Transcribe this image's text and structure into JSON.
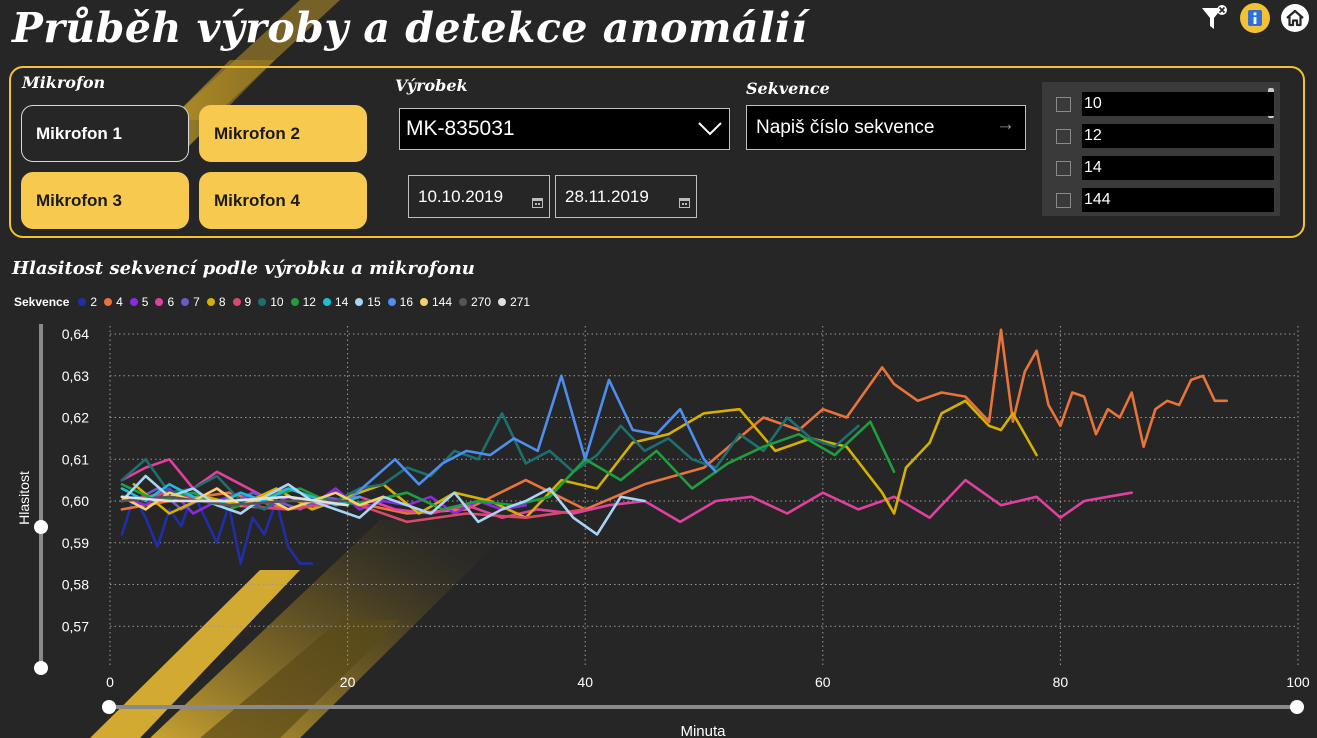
{
  "header": {
    "title": "Průběh výroby a detekce anomálií"
  },
  "top_icons": [
    "clear-filter-icon",
    "info-icon",
    "home-icon"
  ],
  "colors": {
    "accent": "#f2c234",
    "button_yellow": "#f7c94f",
    "background": "#262626"
  },
  "filters": {
    "microphone": {
      "label": "Mikrofon",
      "buttons": [
        {
          "label": "Mikrofon 1",
          "selected": true
        },
        {
          "label": "Mikrofon 2",
          "selected": false
        },
        {
          "label": "Mikrofon 3",
          "selected": false
        },
        {
          "label": "Mikrofon 4",
          "selected": false
        }
      ]
    },
    "product": {
      "label": "Výrobek",
      "value": "MK-835031"
    },
    "date_from": "10.10.2019",
    "date_to": "28.11.2019",
    "sequence": {
      "label": "Sekvence",
      "placeholder": "Napiš číslo sekvence"
    },
    "sequence_list": [
      "10",
      "12",
      "14",
      "144"
    ]
  },
  "chart": {
    "title": "Hlasitost sekvencí podle výrobku a mikrofonu"
  },
  "chart_data": {
    "type": "line",
    "legend_title": "Sekvence",
    "xlabel": "Minuta",
    "ylabel": "Hlasitost",
    "xlim": [
      0,
      100
    ],
    "ylim": [
      0.56,
      0.64
    ],
    "x_ticks": [
      "0",
      "20",
      "40",
      "60",
      "80",
      "100"
    ],
    "y_ticks": [
      "0,64",
      "0,63",
      "0,62",
      "0,61",
      "0,60",
      "0,59",
      "0,58",
      "0,57"
    ],
    "grid": true,
    "legend_position": "top-left",
    "series": [
      {
        "name": "2",
        "color": "#1f2fa8",
        "x": [
          1,
          2,
          3,
          4,
          5,
          6,
          7,
          8,
          9,
          10,
          11,
          12,
          13,
          14,
          15,
          16,
          17
        ],
        "y": [
          0.592,
          0.601,
          0.596,
          0.589,
          0.598,
          0.594,
          0.602,
          0.596,
          0.59,
          0.599,
          0.585,
          0.596,
          0.592,
          0.6,
          0.589,
          0.585,
          0.585
        ]
      },
      {
        "name": "4",
        "color": "#e8743b",
        "x": [
          1,
          5,
          10,
          15,
          20,
          25,
          30,
          35,
          40,
          45,
          50,
          55,
          58,
          60,
          62,
          65,
          66,
          68,
          70,
          72,
          74,
          75,
          76,
          77,
          78,
          79,
          80,
          81,
          82,
          83,
          84,
          85,
          86,
          87,
          88,
          89,
          90,
          91,
          92,
          93,
          94
        ],
        "y": [
          0.598,
          0.6,
          0.602,
          0.598,
          0.6,
          0.597,
          0.598,
          0.605,
          0.598,
          0.604,
          0.608,
          0.62,
          0.617,
          0.622,
          0.62,
          0.632,
          0.628,
          0.624,
          0.626,
          0.625,
          0.619,
          0.641,
          0.619,
          0.631,
          0.636,
          0.623,
          0.618,
          0.626,
          0.625,
          0.616,
          0.622,
          0.62,
          0.626,
          0.613,
          0.622,
          0.624,
          0.623,
          0.629,
          0.63,
          0.624,
          0.624
        ]
      },
      {
        "name": "5",
        "color": "#8a2be2",
        "x": [
          1,
          3,
          5,
          7,
          9,
          11,
          13,
          15,
          17,
          19,
          21,
          23,
          25,
          27,
          29,
          31,
          33,
          35
        ],
        "y": [
          0.601,
          0.599,
          0.603,
          0.597,
          0.6,
          0.602,
          0.598,
          0.601,
          0.599,
          0.603,
          0.598,
          0.6,
          0.599,
          0.601,
          0.597,
          0.6,
          0.598,
          0.599
        ]
      },
      {
        "name": "6",
        "color": "#e040a0",
        "x": [
          1,
          3,
          5,
          7,
          9,
          11,
          13,
          15,
          18,
          21,
          24,
          27,
          30,
          33,
          36,
          39,
          42,
          45,
          48,
          51,
          54,
          57,
          60,
          63,
          66,
          69,
          72,
          75,
          78,
          80,
          82,
          84,
          86
        ],
        "y": [
          0.605,
          0.608,
          0.61,
          0.603,
          0.607,
          0.604,
          0.601,
          0.603,
          0.6,
          0.601,
          0.598,
          0.597,
          0.599,
          0.596,
          0.598,
          0.597,
          0.599,
          0.6,
          0.595,
          0.6,
          0.601,
          0.597,
          0.602,
          0.598,
          0.601,
          0.596,
          0.605,
          0.599,
          0.601,
          0.596,
          0.6,
          0.601,
          0.602
        ]
      },
      {
        "name": "7",
        "color": "#6a5acd",
        "x": [
          2,
          4,
          6,
          8,
          10,
          12,
          14,
          16,
          18,
          20
        ],
        "y": [
          0.6,
          0.603,
          0.598,
          0.601,
          0.599,
          0.602,
          0.6,
          0.598,
          0.601,
          0.6
        ]
      },
      {
        "name": "8",
        "color": "#d4b000",
        "x": [
          2,
          5,
          8,
          11,
          14,
          17,
          20,
          23,
          26,
          29,
          32,
          35,
          38,
          41,
          44,
          47,
          50,
          53,
          56,
          59,
          62,
          65,
          66,
          67,
          69,
          70,
          72,
          74,
          75,
          76,
          78
        ],
        "y": [
          0.604,
          0.597,
          0.601,
          0.599,
          0.603,
          0.598,
          0.601,
          0.604,
          0.597,
          0.602,
          0.6,
          0.596,
          0.605,
          0.603,
          0.614,
          0.616,
          0.621,
          0.622,
          0.612,
          0.615,
          0.613,
          0.602,
          0.597,
          0.608,
          0.614,
          0.621,
          0.624,
          0.618,
          0.617,
          0.621,
          0.611
        ]
      },
      {
        "name": "9",
        "color": "#d94a68",
        "x": [
          1,
          5,
          10,
          15,
          20,
          25,
          30,
          35,
          40
        ],
        "y": [
          0.6,
          0.602,
          0.599,
          0.598,
          0.6,
          0.595,
          0.597,
          0.596,
          0.598
        ]
      },
      {
        "name": "10",
        "color": "#1e7070",
        "x": [
          1,
          3,
          5,
          7,
          9,
          11,
          13,
          15,
          17,
          19,
          21,
          23,
          25,
          27,
          29,
          31,
          33,
          35,
          37,
          39,
          41,
          43,
          45,
          47,
          49,
          51,
          53,
          55,
          57,
          59,
          61,
          63
        ],
        "y": [
          0.605,
          0.61,
          0.602,
          0.603,
          0.606,
          0.6,
          0.598,
          0.603,
          0.601,
          0.6,
          0.603,
          0.604,
          0.608,
          0.606,
          0.612,
          0.61,
          0.621,
          0.609,
          0.612,
          0.607,
          0.611,
          0.618,
          0.612,
          0.615,
          0.61,
          0.608,
          0.616,
          0.612,
          0.62,
          0.615,
          0.613,
          0.618
        ]
      },
      {
        "name": "12",
        "color": "#1e9e3e",
        "x": [
          1,
          4,
          7,
          10,
          13,
          16,
          19,
          22,
          25,
          28,
          31,
          34,
          37,
          40,
          43,
          46,
          49,
          52,
          55,
          58,
          61,
          64,
          66
        ],
        "y": [
          0.604,
          0.6,
          0.602,
          0.598,
          0.601,
          0.603,
          0.599,
          0.6,
          0.602,
          0.598,
          0.6,
          0.599,
          0.601,
          0.61,
          0.605,
          0.612,
          0.603,
          0.609,
          0.613,
          0.616,
          0.611,
          0.619,
          0.607
        ]
      },
      {
        "name": "14",
        "color": "#1fbcd8",
        "x": [
          1,
          3,
          5,
          7,
          9,
          11,
          13,
          15,
          17,
          19,
          21
        ],
        "y": [
          0.603,
          0.6,
          0.604,
          0.601,
          0.599,
          0.602,
          0.6,
          0.603,
          0.601,
          0.599,
          0.601
        ]
      },
      {
        "name": "15",
        "color": "#a9d4f5",
        "x": [
          1,
          3,
          5,
          7,
          9,
          11,
          13,
          15,
          17,
          19,
          21,
          23,
          25,
          27,
          29,
          31,
          33,
          35,
          37,
          39,
          41,
          43,
          45
        ],
        "y": [
          0.6,
          0.606,
          0.601,
          0.603,
          0.599,
          0.597,
          0.601,
          0.604,
          0.6,
          0.598,
          0.596,
          0.601,
          0.599,
          0.597,
          0.602,
          0.595,
          0.598,
          0.6,
          0.603,
          0.596,
          0.592,
          0.601,
          0.6
        ]
      },
      {
        "name": "16",
        "color": "#4e8ef0",
        "x": [
          20,
          22,
          24,
          26,
          28,
          30,
          32,
          34,
          36,
          38,
          40,
          42,
          44,
          46,
          48,
          50,
          51
        ],
        "y": [
          0.6,
          0.605,
          0.61,
          0.604,
          0.609,
          0.612,
          0.611,
          0.615,
          0.612,
          0.63,
          0.61,
          0.629,
          0.617,
          0.616,
          0.622,
          0.61,
          0.607
        ]
      },
      {
        "name": "144",
        "color": "#f5d070",
        "x": [
          1,
          3,
          5,
          7,
          9,
          11,
          13,
          15,
          17,
          19,
          21,
          23
        ],
        "y": [
          0.601,
          0.598,
          0.602,
          0.6,
          0.603,
          0.599,
          0.601,
          0.598,
          0.6,
          0.602,
          0.599,
          0.601
        ]
      },
      {
        "name": "270",
        "color": "#555555",
        "x": [
          1,
          5,
          10,
          15,
          20
        ],
        "y": [
          0.6,
          0.601,
          0.599,
          0.6,
          0.6
        ]
      },
      {
        "name": "271",
        "color": "#e0e0e0",
        "x": [
          1,
          5,
          10,
          15,
          20
        ],
        "y": [
          0.601,
          0.6,
          0.6,
          0.601,
          0.599
        ]
      }
    ]
  }
}
